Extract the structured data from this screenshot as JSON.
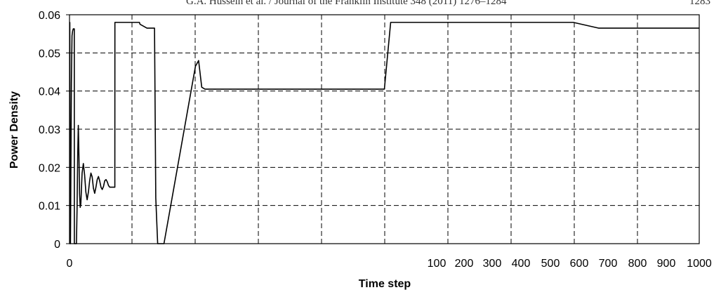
{
  "header": {
    "running_title": "G.A. Hussein et al. / Journal of the Franklin Institute 348 (2011) 1276–1284",
    "page_number": "1283"
  },
  "chart_data": {
    "type": "line",
    "title": "",
    "xlabel": "Time step",
    "ylabel": "Power Density",
    "ylim": [
      0,
      0.06
    ],
    "y_ticks": [
      "0",
      "0.01",
      "0.02",
      "0.03",
      "0.04",
      "0.05",
      "0.06"
    ],
    "x_tick_labels": [
      "0",
      "100",
      "200",
      "300",
      "400",
      "500",
      "600",
      "700",
      "800",
      "900",
      "1000"
    ],
    "grid": true,
    "legend": "none",
    "series": [
      {
        "x": [
          0,
          0.5,
          1,
          1.5,
          2,
          3,
          4,
          5,
          6,
          7,
          7.6,
          7.7,
          8,
          9,
          11,
          12,
          13,
          14,
          15,
          16,
          17,
          18,
          20,
          22,
          24,
          26,
          28,
          30,
          32,
          34,
          36,
          38,
          40,
          42,
          44,
          46,
          48,
          50,
          52,
          54,
          56,
          58,
          60,
          62,
          64,
          66,
          68,
          70,
          72,
          72.1,
          100,
          111,
          112,
          123,
          124,
          124.1,
          130,
          135,
          137,
          140,
          145,
          150,
          200,
          205,
          210,
          215,
          240,
          250,
          300,
          400,
          500,
          510,
          520,
          560,
          600,
          800,
          840,
          850,
          900,
          1000
        ],
        "y": [
          0.058,
          0.058,
          0,
          0,
          0.013,
          0.042,
          0.0545,
          0.0558,
          0.0563,
          0.0563,
          0.0563,
          0,
          0,
          0,
          0,
          0.009,
          0.023,
          0.031,
          0.023,
          0.013,
          0.0095,
          0.0105,
          0.0185,
          0.021,
          0.018,
          0.0135,
          0.0115,
          0.0135,
          0.0165,
          0.0185,
          0.0175,
          0.0145,
          0.0132,
          0.0148,
          0.0168,
          0.0176,
          0.0164,
          0.0148,
          0.0142,
          0.015,
          0.0165,
          0.0168,
          0.0162,
          0.0152,
          0.0148,
          0.0148,
          0.0148,
          0.0148,
          0.0148,
          0.058,
          0.058,
          0.058,
          0.0575,
          0.0565,
          0.0565,
          0.0565,
          0.0565,
          0.0565,
          0.012,
          0,
          0,
          0,
          0.0465,
          0.048,
          0.041,
          0.0405,
          0.0405,
          0.0405,
          0.0405,
          0.0405,
          0.0405,
          0.058,
          0.058,
          0.058,
          0.058,
          0.058,
          0.0565,
          0.0565,
          0.0565,
          0.0565
        ]
      }
    ],
    "colors": {
      "line": "#000000",
      "grid": "#000000",
      "axis": "#000000"
    }
  }
}
